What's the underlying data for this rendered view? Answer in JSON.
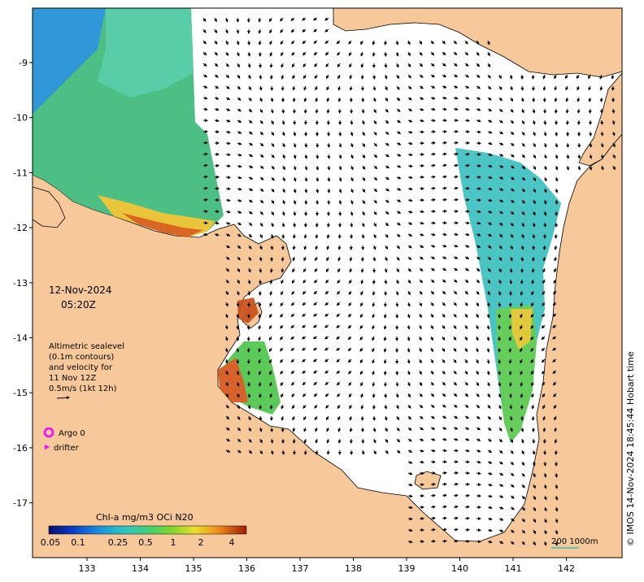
{
  "map": {
    "date": "12-Nov-2024",
    "time": "05:20Z",
    "legend_lines": [
      "Altimetric sealevel",
      "(0.1m contours)",
      "and velocity for",
      "11 Nov 12Z",
      "0.5m/s (1kt 12h)"
    ],
    "argo_label": "Argo 0",
    "drifter_label": "drifter",
    "colorbar_title": "Chl-a mg/m3 OCi N20",
    "colorbar_ticks": [
      "0.05",
      "0.1",
      "0.25",
      "0.5",
      "1",
      "2",
      "4"
    ],
    "scale_label": "200  1000m",
    "credit": "© IMOS 14-Nov-2024 18:45:44 Hobart time",
    "lon_ticks": [
      "133",
      "134",
      "135",
      "136",
      "137",
      "138",
      "139",
      "140",
      "141",
      "142"
    ],
    "lat_ticks": [
      "-9",
      "-10",
      "-11",
      "-12",
      "-13",
      "-14",
      "-15",
      "-16",
      "-17"
    ],
    "colors": {
      "land": "#f7c99a",
      "sea": "#ffffff",
      "argo": "#ff00ff",
      "drifter": "#ff00ff"
    }
  }
}
